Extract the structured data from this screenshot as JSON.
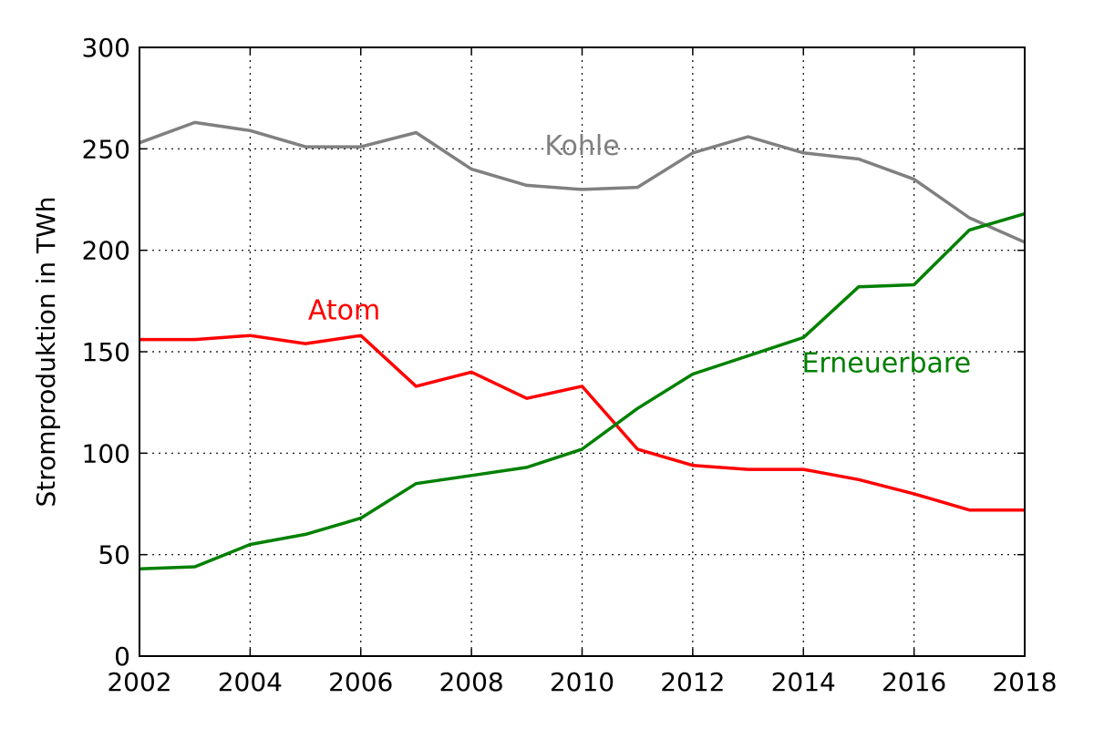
{
  "chart_data": {
    "type": "line",
    "title": "",
    "xlabel": "",
    "ylabel": "Stromproduktion in TWh",
    "xlim": [
      2002,
      2018
    ],
    "ylim": [
      0,
      300
    ],
    "xticks": [
      2002,
      2004,
      2006,
      2008,
      2010,
      2012,
      2014,
      2016,
      2018
    ],
    "yticks": [
      0,
      50,
      100,
      150,
      200,
      250,
      300
    ],
    "grid": true,
    "legend": "none (series labelled inline)",
    "x": [
      2002,
      2003,
      2004,
      2005,
      2006,
      2007,
      2008,
      2009,
      2010,
      2011,
      2012,
      2013,
      2014,
      2015,
      2016,
      2017,
      2018
    ],
    "series": [
      {
        "name": "Kohle",
        "color": "#808080",
        "values": [
          253,
          263,
          259,
          251,
          251,
          258,
          240,
          232,
          230,
          231,
          248,
          256,
          248,
          245,
          235,
          216,
          204
        ],
        "label_at": [
          2010,
          247
        ]
      },
      {
        "name": "Atom",
        "color": "#ff0000",
        "values": [
          156,
          156,
          158,
          154,
          158,
          133,
          140,
          127,
          133,
          102,
          94,
          92,
          92,
          87,
          80,
          72,
          72
        ],
        "label_at": [
          2005.7,
          166
        ]
      },
      {
        "name": "Erneuerbare",
        "color": "#008000",
        "values": [
          43,
          44,
          55,
          60,
          68,
          85,
          89,
          93,
          102,
          122,
          139,
          148,
          157,
          182,
          183,
          210,
          218
        ],
        "label_at": [
          2015.5,
          140
        ]
      }
    ]
  }
}
